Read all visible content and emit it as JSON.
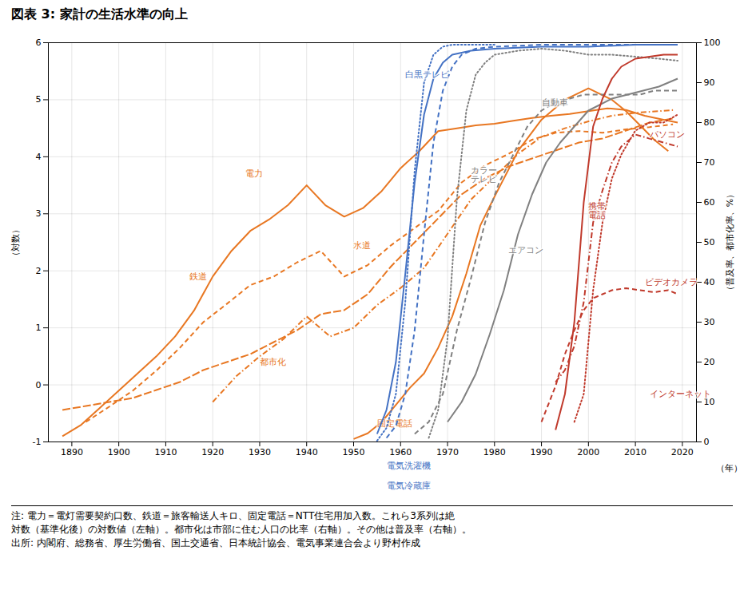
{
  "chart_data": {
    "type": "line",
    "title": "図表 3: 家計の生活水準の向上",
    "xlabel": "（年）",
    "ylabel": "（対数）",
    "y2label": "（普及率、都市化率、%）",
    "xlim": [
      1885,
      2023
    ],
    "xticks": [
      1890,
      1900,
      1910,
      1920,
      1930,
      1940,
      1950,
      1960,
      1970,
      1980,
      1990,
      2000,
      2010,
      2020
    ],
    "ylim": [
      -1,
      6
    ],
    "yticks": [
      -1,
      0,
      1,
      2,
      3,
      4,
      5,
      6
    ],
    "y2lim": [
      0,
      100
    ],
    "y2ticks": [
      0,
      10,
      20,
      30,
      40,
      50,
      60,
      70,
      80,
      90,
      100
    ],
    "grid": true,
    "series": [
      {
        "name": "電力",
        "color": "#E87722",
        "line_style": "solid",
        "x": [
          1888,
          1892,
          1896,
          1900,
          1904,
          1908,
          1912,
          1916,
          1920,
          1924,
          1928,
          1932,
          1936,
          1940,
          1944,
          1948,
          1952,
          1956,
          1960,
          1964,
          1968,
          1972,
          1976,
          1980,
          1984,
          1988,
          1992,
          1996,
          2000,
          2004,
          2008,
          2012,
          2016,
          2019
        ],
        "values": [
          -0.9,
          -0.7,
          -0.4,
          -0.1,
          0.2,
          0.5,
          0.85,
          1.3,
          1.9,
          2.35,
          2.7,
          2.9,
          3.15,
          3.5,
          3.15,
          2.95,
          3.1,
          3.4,
          3.8,
          4.1,
          4.45,
          4.5,
          4.55,
          4.58,
          4.63,
          4.68,
          4.72,
          4.75,
          4.8,
          4.85,
          4.82,
          4.72,
          4.65,
          4.6
        ],
        "annotation": {
          "x": 1927,
          "y": 3.7
        }
      },
      {
        "name": "鉄道",
        "color": "#E87722",
        "line_style": "dashed",
        "x": [
          1893,
          1898,
          1903,
          1908,
          1913,
          1918,
          1923,
          1928,
          1933,
          1938,
          1943,
          1948,
          1953,
          1958,
          1963,
          1968,
          1973,
          1978,
          1983,
          1988,
          1993,
          1998,
          2003,
          2008,
          2013,
          2018
        ],
        "values": [
          -0.65,
          -0.38,
          -0.1,
          0.25,
          0.65,
          1.1,
          1.42,
          1.75,
          1.9,
          2.15,
          2.35,
          1.9,
          2.1,
          2.45,
          2.75,
          3.05,
          3.55,
          3.85,
          4.05,
          4.3,
          4.42,
          4.45,
          4.42,
          4.48,
          4.52,
          4.57
        ],
        "annotation": {
          "x": 1915,
          "y": 1.9
        }
      },
      {
        "name": "水道",
        "color": "#E87722",
        "line_style": "dashdot",
        "x": [
          1920,
          1925,
          1930,
          1935,
          1940,
          1945,
          1950,
          1955,
          1960,
          1965,
          1970,
          1975,
          1980,
          1985,
          1990,
          1995,
          2000,
          2005,
          2010,
          2015,
          2018
        ],
        "values": [
          -0.3,
          0.15,
          0.5,
          0.8,
          1.2,
          0.85,
          1.0,
          1.4,
          1.7,
          2.05,
          2.65,
          3.25,
          3.65,
          4.05,
          4.35,
          4.5,
          4.62,
          4.72,
          4.77,
          4.8,
          4.82
        ],
        "annotation": {
          "x": 1950,
          "y": 2.45
        }
      },
      {
        "name": "都市化",
        "color": "#E87722",
        "line_style": "longdash",
        "axis": "y2",
        "x": [
          1888,
          1893,
          1898,
          1903,
          1908,
          1913,
          1918,
          1923,
          1928,
          1933,
          1938,
          1943,
          1948,
          1953,
          1958,
          1963,
          1968,
          1973,
          1978,
          1983,
          1988,
          1993,
          1998,
          2003,
          2008,
          2013,
          2018
        ],
        "values": [
          8,
          9,
          10,
          11,
          13,
          15,
          18,
          20,
          22,
          25,
          28,
          32,
          33,
          37,
          44,
          50,
          56,
          62,
          66,
          69,
          71,
          73,
          75,
          76,
          78,
          80,
          81
        ],
        "annotation": {
          "x": 1930,
          "y": 20
        }
      },
      {
        "name": "固定電話",
        "color": "#E87722",
        "line_style": "solid",
        "x": [
          1950,
          1953,
          1956,
          1959,
          1962,
          1965,
          1968,
          1971,
          1974,
          1977,
          1980,
          1985,
          1990,
          1995,
          2000,
          2005,
          2008,
          2011,
          2014,
          2017
        ],
        "values": [
          -0.95,
          -0.85,
          -0.65,
          -0.35,
          -0.05,
          0.2,
          0.65,
          1.2,
          1.95,
          2.8,
          3.3,
          4.1,
          4.65,
          5.0,
          5.2,
          5.0,
          4.8,
          4.55,
          4.3,
          4.1
        ],
        "annotation": {
          "x": 1955,
          "y": -0.68
        }
      },
      {
        "name": "白黒テレビ",
        "color": "#4472C4",
        "line_style": "dotted",
        "axis": "y2",
        "x": [
          1955,
          1957,
          1959,
          1961,
          1963,
          1965,
          1967,
          1969,
          1971,
          1975,
          1980
        ],
        "values": [
          0.3,
          3.5,
          12,
          35,
          68,
          90,
          97,
          99,
          99.5,
          99.5,
          99.5
        ],
        "annotation": {
          "x": 1961,
          "y": 92
        }
      },
      {
        "name": "電気洗濯機",
        "color": "#4472C4",
        "line_style": "solid",
        "axis": "y2",
        "x": [
          1955,
          1957,
          1959,
          1961,
          1963,
          1965,
          1967,
          1969,
          1971,
          1975,
          1980,
          1990,
          2000,
          2010,
          2019
        ],
        "values": [
          2,
          8,
          20,
          42,
          65,
          82,
          91,
          95,
          97,
          98,
          98.5,
          99,
          99,
          99.5,
          99.5
        ],
        "annotation": {
          "x": 1957,
          "y": -6
        }
      },
      {
        "name": "電気冷蔵庫",
        "color": "#4472C4",
        "line_style": "dashed",
        "axis": "y2",
        "x": [
          1957,
          1959,
          1961,
          1963,
          1965,
          1967,
          1969,
          1971,
          1973,
          1976,
          1980,
          1990,
          2000,
          2010,
          2019
        ],
        "values": [
          1,
          4,
          12,
          28,
          52,
          75,
          88,
          94,
          97,
          98.5,
          99,
          99.5,
          99.5,
          99.5,
          99.5
        ],
        "annotation": {
          "x": 1957,
          "y": -11
        }
      },
      {
        "name": "カラー\nテレビ",
        "color": "#808080",
        "line_style": "dotted",
        "axis": "y2",
        "x": [
          1966,
          1968,
          1970,
          1972,
          1974,
          1976,
          1978,
          1980,
          1985,
          1990,
          1995,
          2000,
          2005,
          2010,
          2015,
          2019
        ],
        "values": [
          1,
          8,
          26,
          61,
          83,
          92,
          95,
          97,
          98,
          98.5,
          98,
          97,
          97,
          96.5,
          96,
          95.5
        ],
        "annotation": {
          "x": 1975,
          "y": 67
        }
      },
      {
        "name": "自動車",
        "color": "#808080",
        "line_style": "dashed",
        "axis": "y2",
        "x": [
          1963,
          1966,
          1969,
          1972,
          1975,
          1978,
          1981,
          1984,
          1987,
          1990,
          1993,
          1996,
          1999,
          2002,
          2005,
          2008,
          2011,
          2014,
          2017,
          2019
        ],
        "values": [
          2,
          5,
          12,
          28,
          41,
          55,
          65,
          72,
          79,
          83,
          85,
          86,
          87,
          87,
          87,
          87,
          87,
          88,
          88,
          88
        ],
        "annotation": {
          "x": 1990,
          "y": 85
        }
      },
      {
        "name": "エアコン",
        "color": "#808080",
        "line_style": "solid",
        "axis": "y2",
        "x": [
          1970,
          1973,
          1976,
          1979,
          1982,
          1985,
          1988,
          1991,
          1994,
          1997,
          2000,
          2005,
          2010,
          2015,
          2019
        ],
        "values": [
          5,
          10,
          17,
          27,
          38,
          52,
          62,
          70,
          75,
          79,
          83,
          86,
          87.5,
          89,
          91
        ],
        "annotation": {
          "x": 1983,
          "y": 48
        }
      },
      {
        "name": "携帯\n電話",
        "color": "#C0392B",
        "line_style": "solid",
        "axis": "y2",
        "x": [
          1993,
          1995,
          1997,
          1999,
          2001,
          2003,
          2005,
          2007,
          2010,
          2013,
          2016,
          2019
        ],
        "values": [
          3,
          12,
          30,
          60,
          79,
          86,
          91,
          94,
          96,
          96.5,
          97,
          97
        ],
        "annotation": {
          "x": 2000,
          "y": 58
        }
      },
      {
        "name": "パソコン",
        "color": "#C0392B",
        "line_style": "dashdot",
        "axis": "y2",
        "x": [
          1993,
          1995,
          1997,
          1999,
          2001,
          2003,
          2005,
          2007,
          2010,
          2013,
          2016,
          2019
        ],
        "values": [
          15,
          18,
          24,
          35,
          55,
          63,
          70,
          74,
          77,
          76,
          75,
          74
        ],
        "annotation": {
          "x": 2013,
          "y": 77
        }
      },
      {
        "name": "ビデオカメラ",
        "color": "#C0392B",
        "line_style": "dashed",
        "axis": "y2",
        "x": [
          1990,
          1993,
          1995,
          1997,
          1999,
          2001,
          2003,
          2005,
          2008,
          2011,
          2014,
          2017,
          2019
        ],
        "values": [
          5,
          14,
          22,
          28,
          33,
          36,
          37,
          38,
          38.5,
          38,
          37.5,
          38,
          37
        ],
        "annotation": {
          "x": 2012,
          "y": 40
        }
      },
      {
        "name": "インターネット",
        "color": "#C0392B",
        "line_style": "dotted",
        "axis": "y2",
        "x": [
          1997,
          1999,
          2001,
          2003,
          2005,
          2007,
          2010,
          2013,
          2016,
          2019
        ],
        "values": [
          5,
          12,
          38,
          55,
          66,
          72,
          78,
          80,
          80,
          82
        ],
        "annotation": {
          "x": 2013,
          "y": 12
        }
      }
    ],
    "notes": [
      "注: 電力＝電灯需要契約口数、鉄道＝旅客輸送人キロ、固定電話＝NTT住宅用加入数。これら3系列は絶",
      "対数（基準化後）の対数値（左軸）。都市化は市部に住む人口の比率（右軸）。その他は普及率（右軸）。",
      "出所: 内閣府、総務省、厚生労働省、国土交通省、日本統計協会、電気事業連合会より野村作成"
    ]
  }
}
